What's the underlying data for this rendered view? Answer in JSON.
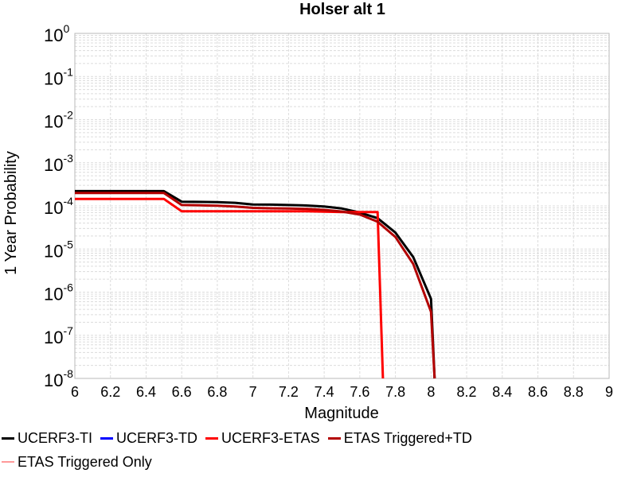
{
  "chart_data": {
    "type": "line",
    "title": "Holser alt 1",
    "xlabel": "Magnitude",
    "ylabel": "1 Year Probability",
    "xlim": [
      6,
      9
    ],
    "ylim": [
      1e-08,
      1
    ],
    "yscale": "log",
    "grid": true,
    "xticks": [
      "6",
      "6.2",
      "6.4",
      "6.6",
      "6.8",
      "7",
      "7.2",
      "7.4",
      "7.6",
      "7.8",
      "8",
      "8.2",
      "8.4",
      "8.6",
      "8.8",
      "9"
    ],
    "yticks": [
      {
        "base": "10",
        "exp": "0"
      },
      {
        "base": "10",
        "exp": "-1"
      },
      {
        "base": "10",
        "exp": "-2"
      },
      {
        "base": "10",
        "exp": "-3"
      },
      {
        "base": "10",
        "exp": "-4"
      },
      {
        "base": "10",
        "exp": "-5"
      },
      {
        "base": "10",
        "exp": "-6"
      },
      {
        "base": "10",
        "exp": "-7"
      },
      {
        "base": "10",
        "exp": "-8"
      }
    ],
    "legend_position": "bottom",
    "series": [
      {
        "name": "UCERF3-TI",
        "color": "#000000",
        "x": [
          6.0,
          6.5,
          6.6,
          6.8,
          6.9,
          7.0,
          7.1,
          7.2,
          7.3,
          7.4,
          7.5,
          7.6,
          7.7,
          7.8,
          7.9,
          8.0,
          8.02
        ],
        "y": [
          0.00022,
          0.00022,
          0.000125,
          0.000122,
          0.000118,
          0.000108,
          0.000107,
          0.000105,
          0.000102,
          9.7e-05,
          8.7e-05,
          7e-05,
          5.2e-05,
          2.4e-05,
          6.5e-06,
          7e-07,
          1e-08
        ]
      },
      {
        "name": "UCERF3-TD",
        "color": "#0000ff",
        "x": [],
        "y": []
      },
      {
        "name": "UCERF3-ETAS",
        "color": "#ff0000",
        "x": [
          6.0,
          6.5,
          6.6,
          6.7,
          7.0,
          7.3,
          7.5,
          7.6,
          7.7,
          7.73
        ],
        "y": [
          0.000145,
          0.000145,
          7.5e-05,
          7.5e-05,
          7.5e-05,
          7.5e-05,
          7.2e-05,
          7.2e-05,
          7.2e-05,
          1e-08
        ]
      },
      {
        "name": "ETAS Triggered+TD",
        "color": "#b30000",
        "x": [
          6.0,
          6.5,
          6.6,
          6.7,
          6.8,
          6.9,
          7.0,
          7.1,
          7.2,
          7.3,
          7.4,
          7.5,
          7.6,
          7.7,
          7.8,
          7.9,
          8.0,
          8.02
        ],
        "y": [
          0.0002,
          0.0002,
          0.000105,
          0.000103,
          0.000101,
          9.7e-05,
          9e-05,
          8.8e-05,
          8.7e-05,
          8.5e-05,
          8.1e-05,
          7.4e-05,
          6.3e-05,
          4.3e-05,
          1.9e-05,
          4.5e-06,
          3.5e-07,
          1e-08
        ]
      },
      {
        "name": "ETAS Triggered Only",
        "color": "#ff9999",
        "x": [],
        "y": []
      }
    ]
  }
}
